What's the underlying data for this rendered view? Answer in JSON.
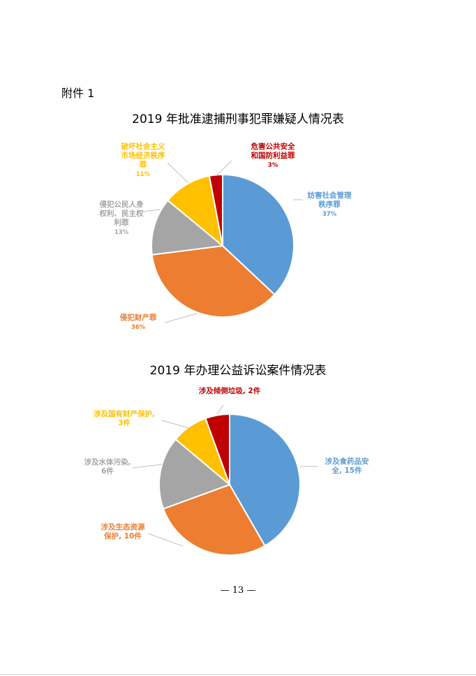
{
  "attachment_label": "附件 1",
  "page_number": "— 13 —",
  "chart_data": [
    {
      "type": "pie",
      "title": "2019 年批准逮捕刑事犯罪嫌疑人情况表",
      "slices": [
        {
          "name": "妨害社会管理秩序罪",
          "label_lines": [
            "妨害社会管理",
            "秩序罪"
          ],
          "value_text": "37%",
          "value": 37,
          "color": "#5B9BD5"
        },
        {
          "name": "侵犯财产罪",
          "label_lines": [
            "侵犯财产罪"
          ],
          "value_text": "36%",
          "value": 36,
          "color": "#ED7D31"
        },
        {
          "name": "侵犯公民人身权利、民主权利罪",
          "label_lines": [
            "侵犯公民人身",
            "权利、民主权",
            "利罪"
          ],
          "value_text": "13%",
          "value": 13,
          "color": "#A5A5A5"
        },
        {
          "name": "破坏社会主义市场经济秩序罪",
          "label_lines": [
            "破坏社会主义",
            "市场经济秩序",
            "罪"
          ],
          "value_text": "11%",
          "value": 11,
          "color": "#FFC000"
        },
        {
          "name": "危害公共安全和国防利益罪",
          "label_lines": [
            "危害公共安全",
            "和国防利益罪"
          ],
          "value_text": "3%",
          "value": 3,
          "color": "#C00000"
        }
      ]
    },
    {
      "type": "pie",
      "title": "2019 年办理公益诉讼案件情况表",
      "slices": [
        {
          "name": "涉及食药品安全",
          "label_lines": [
            "涉及食药品安",
            "全, 15件"
          ],
          "value": 15,
          "color": "#5B9BD5"
        },
        {
          "name": "涉及生态资源保护",
          "label_lines": [
            "涉及生态资源",
            "保护, 10件"
          ],
          "value": 10,
          "color": "#ED7D31"
        },
        {
          "name": "涉及水体污染",
          "label_lines": [
            "涉及水体污染,",
            "6件"
          ],
          "value": 6,
          "color": "#A5A5A5"
        },
        {
          "name": "涉及国有财产保护",
          "label_lines": [
            "涉及国有财产保护,",
            "3件"
          ],
          "value": 3,
          "color": "#FFC000"
        },
        {
          "name": "涉及倾倒垃圾",
          "label_lines": [
            "涉及倾倒垃圾, 2件"
          ],
          "value": 2,
          "color": "#C00000"
        }
      ]
    }
  ]
}
